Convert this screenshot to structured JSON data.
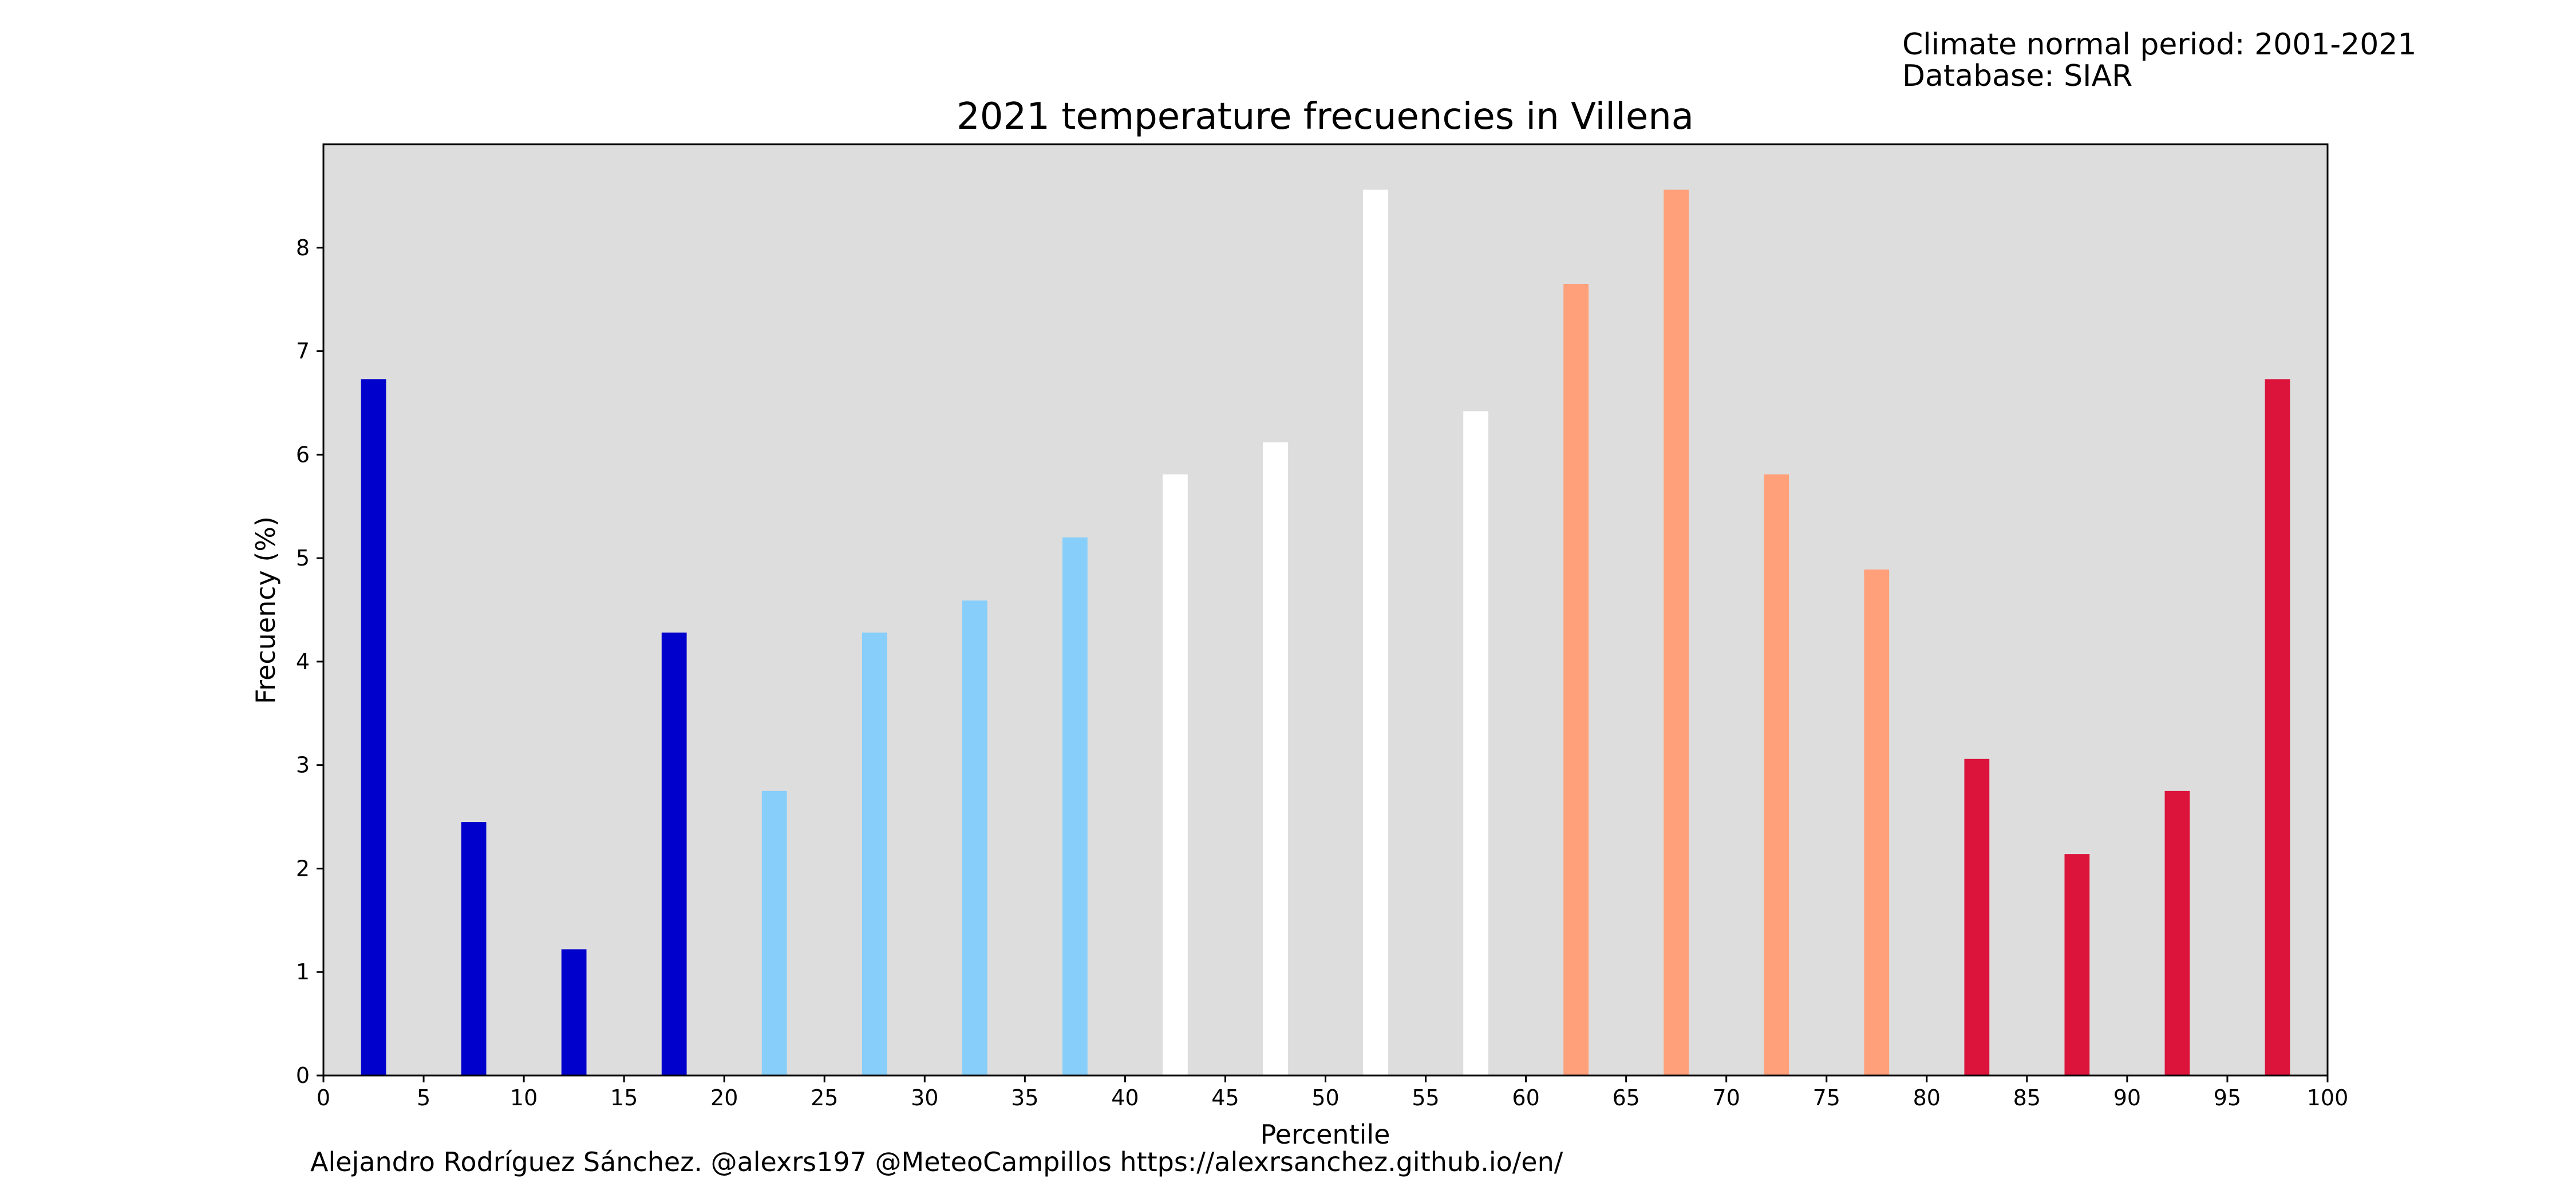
{
  "header": {
    "note_line1": "Climate normal period: 2001-2021",
    "note_line2": "Database: SIAR"
  },
  "footer": {
    "credit": "Alejandro Rodríguez Sánchez. @alexrs197 @MeteoCampillos   https://alexrsanchez.github.io/en/"
  },
  "chart_data": {
    "type": "bar",
    "title": "2021 temperature frecuencies in Villena",
    "xlabel": "Percentile",
    "ylabel": "Frecuency (%)",
    "xlim": [
      0,
      100
    ],
    "ylim": [
      0,
      9
    ],
    "x_ticks": [
      0,
      5,
      10,
      15,
      20,
      25,
      30,
      35,
      40,
      45,
      50,
      55,
      60,
      65,
      70,
      75,
      80,
      85,
      90,
      95,
      100
    ],
    "y_ticks": [
      0,
      1,
      2,
      3,
      4,
      5,
      6,
      7,
      8
    ],
    "bar_width": 1.25,
    "grid": false,
    "background": "#dddddd",
    "bars": [
      {
        "x": 2.5,
        "value": 6.73,
        "color": "#0000cd"
      },
      {
        "x": 7.5,
        "value": 2.45,
        "color": "#0000cd"
      },
      {
        "x": 12.5,
        "value": 1.22,
        "color": "#0000cd"
      },
      {
        "x": 17.5,
        "value": 4.28,
        "color": "#0000cd"
      },
      {
        "x": 22.5,
        "value": 2.75,
        "color": "#87cefa"
      },
      {
        "x": 27.5,
        "value": 4.28,
        "color": "#87cefa"
      },
      {
        "x": 32.5,
        "value": 4.59,
        "color": "#87cefa"
      },
      {
        "x": 37.5,
        "value": 5.2,
        "color": "#87cefa"
      },
      {
        "x": 42.5,
        "value": 5.81,
        "color": "#ffffff"
      },
      {
        "x": 47.5,
        "value": 6.12,
        "color": "#ffffff"
      },
      {
        "x": 52.5,
        "value": 8.56,
        "color": "#ffffff"
      },
      {
        "x": 57.5,
        "value": 6.42,
        "color": "#ffffff"
      },
      {
        "x": 62.5,
        "value": 7.65,
        "color": "#ffa07a"
      },
      {
        "x": 67.5,
        "value": 8.56,
        "color": "#ffa07a"
      },
      {
        "x": 72.5,
        "value": 5.81,
        "color": "#ffa07a"
      },
      {
        "x": 77.5,
        "value": 4.89,
        "color": "#ffa07a"
      },
      {
        "x": 82.5,
        "value": 3.06,
        "color": "#dc143c"
      },
      {
        "x": 87.5,
        "value": 2.14,
        "color": "#dc143c"
      },
      {
        "x": 92.5,
        "value": 2.75,
        "color": "#dc143c"
      },
      {
        "x": 97.5,
        "value": 6.73,
        "color": "#dc143c"
      }
    ]
  }
}
